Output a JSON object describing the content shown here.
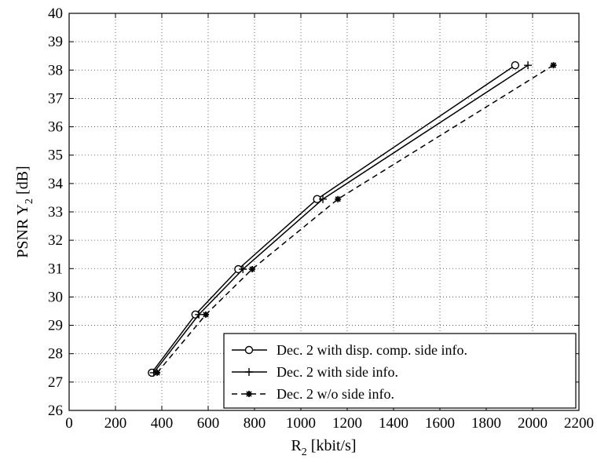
{
  "chart_data": {
    "type": "line",
    "xlabel_main": "R",
    "xlabel_sub": "2",
    "xlabel_rest": " [kbit/s]",
    "ylabel_main": "PSNR Y",
    "ylabel_sub": "2",
    "ylabel_rest": " [dB]",
    "xlim": [
      0,
      2200
    ],
    "ylim": [
      26,
      40
    ],
    "xticks": [
      0,
      200,
      400,
      600,
      800,
      1000,
      1200,
      1400,
      1600,
      1800,
      2000,
      2200
    ],
    "yticks": [
      26,
      27,
      28,
      29,
      30,
      31,
      32,
      33,
      34,
      35,
      36,
      37,
      38,
      39,
      40
    ],
    "grid": true,
    "legend_position": "bottom-right",
    "series": [
      {
        "name": "Dec. 2 with disp. comp. side info.",
        "marker": "circle",
        "dash": "solid",
        "x": [
          357,
          545,
          730,
          1070,
          1925
        ],
        "y": [
          27.33,
          29.38,
          30.98,
          33.45,
          38.17
        ]
      },
      {
        "name": "Dec. 2 with side info.",
        "marker": "plus",
        "dash": "solid",
        "x": [
          365,
          560,
          750,
          1095,
          1980
        ],
        "y": [
          27.33,
          29.38,
          30.98,
          33.45,
          38.17
        ]
      },
      {
        "name": "Dec. 2 w/o side info.",
        "marker": "star",
        "dash": "dashed",
        "x": [
          380,
          590,
          790,
          1160,
          2090
        ],
        "y": [
          27.33,
          29.38,
          30.98,
          33.45,
          38.17
        ]
      }
    ]
  }
}
